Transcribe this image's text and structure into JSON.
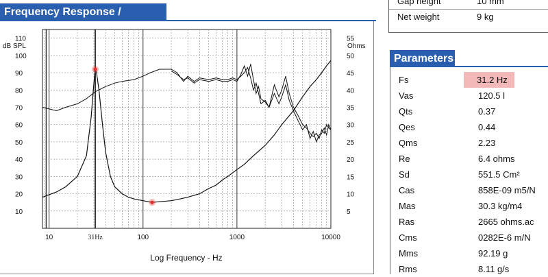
{
  "top_table": {
    "rows": [
      {
        "label": "Gap height",
        "value": "10 mm"
      },
      {
        "label": "Net weight",
        "value": "9 kg"
      }
    ]
  },
  "freq_section": {
    "title": "Frequency Response / Impedance"
  },
  "params_section": {
    "title": "Parameters",
    "rows": [
      {
        "label": "Fs",
        "value": "31.2 Hz",
        "highlight": true
      },
      {
        "label": "Vas",
        "value": "120.5 l"
      },
      {
        "label": "Qts",
        "value": "0.37"
      },
      {
        "label": "Qes",
        "value": "0.44"
      },
      {
        "label": "Qms",
        "value": "2.23"
      },
      {
        "label": "Re",
        "value": "6.4 ohms"
      },
      {
        "label": "Sd",
        "value": "551.5 Cm²"
      },
      {
        "label": "Cas",
        "value": "858E-09 m5/N"
      },
      {
        "label": "Mas",
        "value": "30.3 kg/m4"
      },
      {
        "label": "Ras",
        "value": "2665 ohms.ac"
      },
      {
        "label": "Cms",
        "value": "0282E-6 m/N"
      },
      {
        "label": "Mms",
        "value": "92.19 g"
      },
      {
        "label": "Rms",
        "value": "8.11 g/s"
      }
    ]
  },
  "colors": {
    "header_blue": "#2a5fb0",
    "highlight": "#f3b9b9",
    "marker": "#e63030"
  },
  "chart_data": {
    "type": "line",
    "xlabel": "Log Frequency - Hz",
    "ylabel_left": "dB SPL",
    "ylabel_right": "Ohms",
    "x_scale": "log",
    "xlim": [
      8.5,
      10000
    ],
    "ylim_left": [
      0,
      115
    ],
    "ylim_right": [
      0,
      57.5
    ],
    "x_ticks": [
      {
        "value": 10,
        "label": "10"
      },
      {
        "value": 31,
        "label": "31Hz"
      },
      {
        "value": 100,
        "label": "100"
      },
      {
        "value": 1000,
        "label": "1000"
      },
      {
        "value": 10000,
        "label": "10000"
      }
    ],
    "y_ticks_left": [
      "10",
      "20",
      "30",
      "40",
      "50",
      "60",
      "70",
      "80",
      "90",
      "100",
      "110"
    ],
    "y_ticks_right": [
      "5",
      "10",
      "15",
      "20",
      "25",
      "30",
      "35",
      "40",
      "45",
      "50",
      "55"
    ],
    "grid": true,
    "series": [
      {
        "role": "spl_a",
        "axis": "left",
        "x": [
          8.5,
          12,
          15,
          20,
          25,
          31,
          40,
          50,
          60,
          80,
          100,
          120,
          150,
          200,
          230,
          270,
          300,
          350,
          400,
          500,
          600,
          700,
          800,
          900,
          1000,
          1100,
          1200,
          1300,
          1400,
          1500,
          1600,
          1700,
          1800,
          2000,
          2200,
          2500,
          2800,
          3000,
          3300,
          3600,
          4000,
          4500,
          5000,
          5500,
          6000,
          6500,
          7000,
          7500,
          8000,
          8500,
          9000,
          9500,
          10000
        ],
        "y": [
          70,
          68,
          70,
          72,
          75,
          79,
          82,
          84,
          85,
          86,
          88,
          90,
          92,
          92,
          90,
          85,
          88,
          85,
          87,
          86,
          87,
          86,
          86,
          87,
          86,
          88,
          90,
          93,
          87,
          80,
          84,
          78,
          72,
          74,
          70,
          83,
          76,
          80,
          88,
          78,
          70,
          65,
          60,
          58,
          55,
          53,
          55,
          52,
          57,
          55,
          60,
          58,
          57
        ]
      },
      {
        "role": "spl_b",
        "axis": "left",
        "x": [
          200,
          230,
          270,
          300,
          350,
          400,
          500,
          600,
          700,
          800,
          900,
          1000,
          1100,
          1200,
          1300,
          1400,
          1500,
          1600,
          1700,
          1800,
          2000,
          2200,
          2500,
          2800,
          3000,
          3300,
          3600,
          4000,
          4500,
          5000,
          5500,
          6000,
          6500,
          7000,
          7500,
          8000,
          8500,
          9000,
          9500,
          10000
        ],
        "y": [
          91,
          89,
          86,
          87,
          84,
          86,
          85,
          86,
          85,
          85,
          86,
          85,
          89,
          94,
          88,
          95,
          86,
          78,
          82,
          75,
          73,
          70,
          78,
          72,
          76,
          83,
          74,
          68,
          62,
          57,
          60,
          52,
          56,
          50,
          54,
          55,
          58,
          54,
          60,
          57
        ]
      },
      {
        "role": "impedance",
        "axis": "right",
        "x": [
          8.5,
          12,
          15,
          20,
          25,
          28,
          30,
          31,
          32,
          34,
          37,
          40,
          45,
          50,
          60,
          70,
          80,
          100,
          125,
          150,
          200,
          250,
          300,
          400,
          500,
          600,
          700,
          800,
          1000,
          1200,
          1500,
          2000,
          2500,
          3000,
          4000,
          5000,
          6000,
          7000,
          8000,
          9000,
          10000
        ],
        "y": [
          9,
          10.5,
          12,
          15,
          21,
          32,
          42,
          46,
          45,
          40,
          30,
          22,
          15,
          12,
          10,
          9,
          8.5,
          8,
          7.5,
          7.7,
          8,
          8.5,
          9,
          10,
          11.5,
          12.5,
          14,
          15,
          17,
          18.5,
          21,
          24,
          27,
          30,
          34,
          38,
          41,
          43,
          45,
          47,
          48.5
        ]
      }
    ],
    "markers": [
      {
        "x": 31,
        "y": 92,
        "axis": "left"
      },
      {
        "x": 125,
        "y": 7.5,
        "axis": "right"
      }
    ]
  }
}
